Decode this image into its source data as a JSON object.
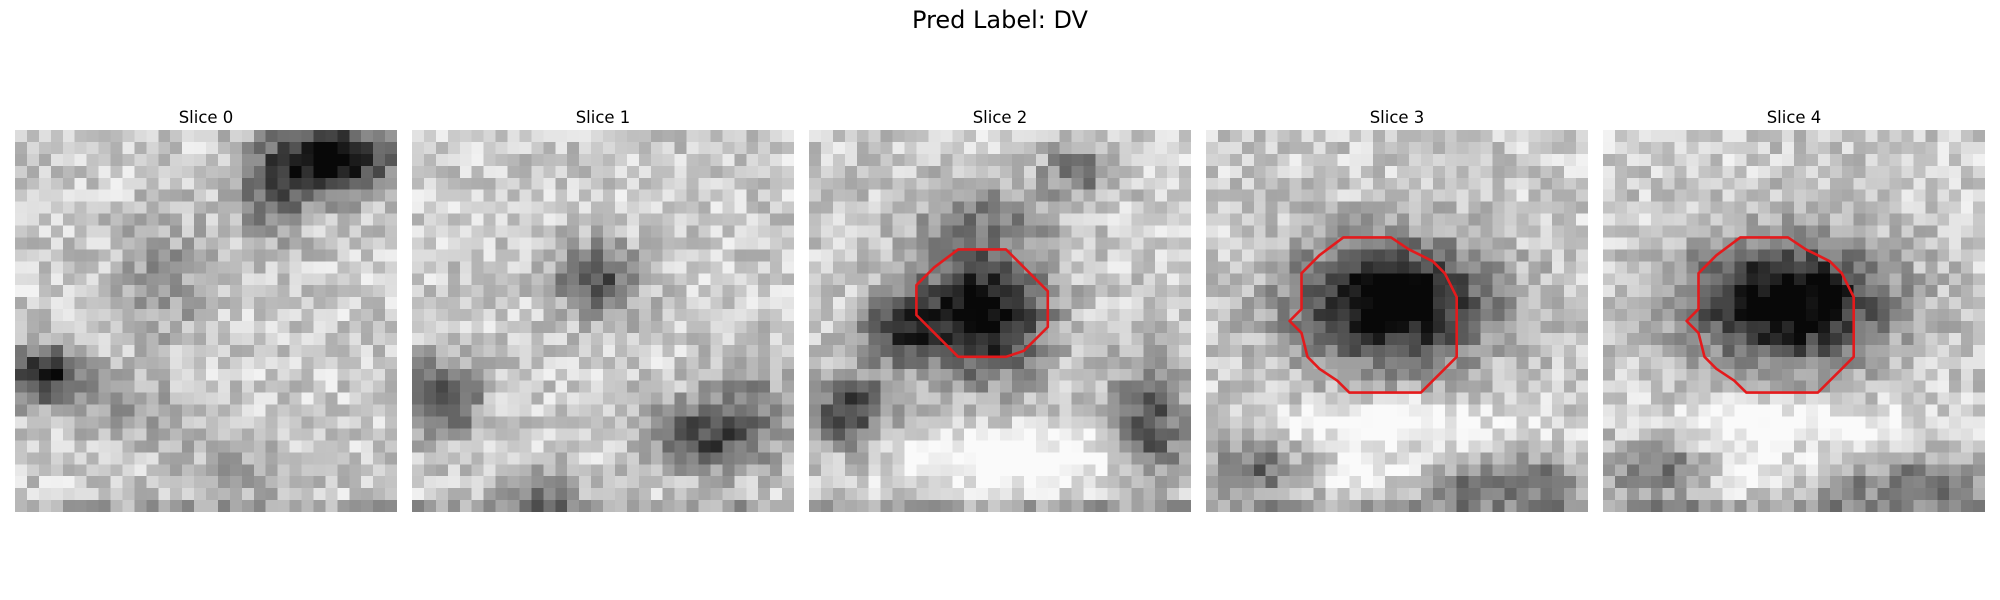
{
  "figure": {
    "title": "Pred Label: DV"
  },
  "contour_color": "#e41a1c",
  "panels": [
    {
      "title": "Slice 0",
      "has_contour": false
    },
    {
      "title": "Slice 1",
      "has_contour": false
    },
    {
      "title": "Slice 2",
      "has_contour": true
    },
    {
      "title": "Slice 3",
      "has_contour": true
    },
    {
      "title": "Slice 4",
      "has_contour": true
    }
  ]
}
